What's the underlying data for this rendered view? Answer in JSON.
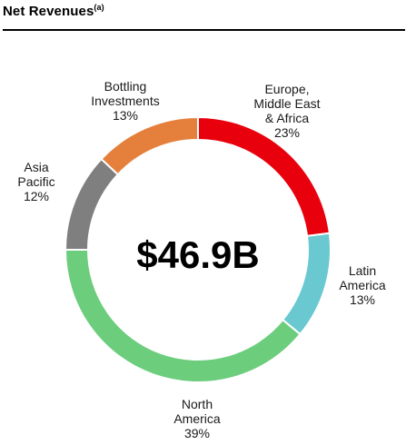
{
  "header": {
    "title": "Net Revenues",
    "note_marker": "(a)"
  },
  "chart_data": {
    "type": "pie",
    "title": "Net Revenues(a)",
    "center_label": "$46.9B",
    "segments": [
      {
        "name": "Europe, Middle East & Africa",
        "label_lines": [
          "Europe,",
          "Middle East",
          "& Africa"
        ],
        "value_label": "23%",
        "value": 23,
        "color": "#e8000d"
      },
      {
        "name": "Latin America",
        "label_lines": [
          "Latin",
          "America"
        ],
        "value_label": "13%",
        "value": 13,
        "color": "#6ac8d0"
      },
      {
        "name": "North America",
        "label_lines": [
          "North",
          "America"
        ],
        "value_label": "39%",
        "value": 39,
        "color": "#6ccd7d"
      },
      {
        "name": "Asia Pacific",
        "label_lines": [
          "Asia",
          "Pacific"
        ],
        "value_label": "12%",
        "value": 12,
        "color": "#7f7f7f"
      },
      {
        "name": "Bottling Investments",
        "label_lines": [
          "Bottling",
          "Investments"
        ],
        "value_label": "13%",
        "value": 13,
        "color": "#e5803c"
      }
    ]
  }
}
